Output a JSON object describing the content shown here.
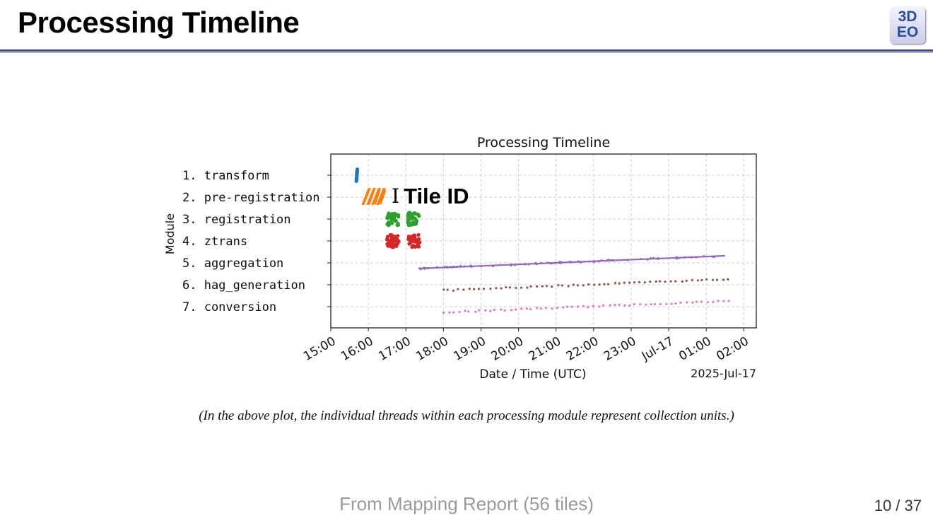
{
  "slide": {
    "title": "Processing Timeline",
    "logo": {
      "line1": "3D",
      "line2": "EO"
    },
    "caption": "(In the above plot, the individual threads within each processing module represent collection units.)",
    "source": "From Mapping Report (56 tiles)",
    "page_number": "10 / 37"
  },
  "tooltip": {
    "icon": "text-cursor-icon",
    "label": "Tile ID"
  },
  "chart_data": {
    "type": "scatter",
    "title": "Processing Timeline",
    "xlabel": "Date / Time  (UTC)",
    "ylabel": "Module",
    "x_offset_label": "2025-Jul-17",
    "x_tick_labels": [
      "15:00",
      "16:00",
      "17:00",
      "18:00",
      "19:00",
      "20:00",
      "21:00",
      "22:00",
      "23:00",
      "Jul-17",
      "01:00",
      "02:00"
    ],
    "xlim": [
      "2025-07-16 15:00",
      "2025-07-17 02:20"
    ],
    "grid": true,
    "categories": [
      "1. transform",
      "2. pre-registration",
      "3. registration",
      "4. ztrans",
      "5. aggregation",
      "6. hag_generation",
      "7. conversion"
    ],
    "series": [
      {
        "module": "1. transform",
        "color": "#1f77b4",
        "marker": "cluster",
        "x_range": [
          "2025-07-16 15:44",
          "2025-07-16 15:50"
        ]
      },
      {
        "module": "2. pre-registration",
        "color": "#ff7f0e",
        "marker": "cluster",
        "x_range": [
          "2025-07-16 15:52",
          "2025-07-16 16:30"
        ]
      },
      {
        "module": "3. registration",
        "color": "#2ca02c",
        "marker": "cluster",
        "x_range": [
          "2025-07-16 16:29",
          "2025-07-16 17:23"
        ]
      },
      {
        "module": "4. ztrans",
        "color": "#d62728",
        "marker": "cluster",
        "x_range": [
          "2025-07-16 16:29",
          "2025-07-16 17:23"
        ]
      },
      {
        "module": "5. aggregation",
        "color": "#9467bd",
        "marker": "line",
        "x_range": [
          "2025-07-16 17:22",
          "2025-07-17 01:30"
        ]
      },
      {
        "module": "6. hag_generation",
        "color": "#8c564b",
        "marker": "dots",
        "x_range": [
          "2025-07-16 18:00",
          "2025-07-17 01:35"
        ]
      },
      {
        "module": "7. conversion",
        "color": "#e377c2",
        "marker": "dots",
        "x_range": [
          "2025-07-16 18:00",
          "2025-07-17 01:35"
        ]
      }
    ]
  }
}
